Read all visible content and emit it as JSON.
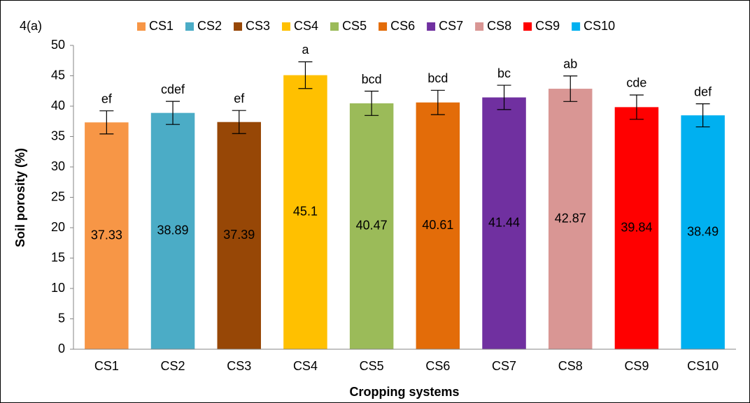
{
  "chart_data": {
    "type": "bar",
    "panel_label": "4(a)",
    "xlabel": "Cropping systems",
    "ylabel": "Soil porosity (%)",
    "categories": [
      "CS1",
      "CS2",
      "CS3",
      "CS4",
      "CS5",
      "CS6",
      "CS7",
      "CS8",
      "CS9",
      "CS10"
    ],
    "values": [
      37.33,
      38.89,
      37.39,
      45.1,
      40.47,
      40.61,
      41.44,
      42.87,
      39.84,
      38.49
    ],
    "errors": [
      1.9,
      1.9,
      1.9,
      2.2,
      2.0,
      2.0,
      2.0,
      2.1,
      2.0,
      1.9
    ],
    "letters": [
      "ef",
      "cdef",
      "ef",
      "a",
      "bcd",
      "bcd",
      "bc",
      "ab",
      "cde",
      "def"
    ],
    "colors": [
      "#f79646",
      "#4bacc6",
      "#974706",
      "#ffc000",
      "#9bbb59",
      "#e36c09",
      "#7030a0",
      "#d99694",
      "#ff0000",
      "#00b0f0"
    ],
    "ylim": [
      0,
      50
    ],
    "yticks": [
      0,
      5,
      10,
      15,
      20,
      25,
      30,
      35,
      40,
      45,
      50
    ],
    "grid": false,
    "legend_position": "top"
  }
}
